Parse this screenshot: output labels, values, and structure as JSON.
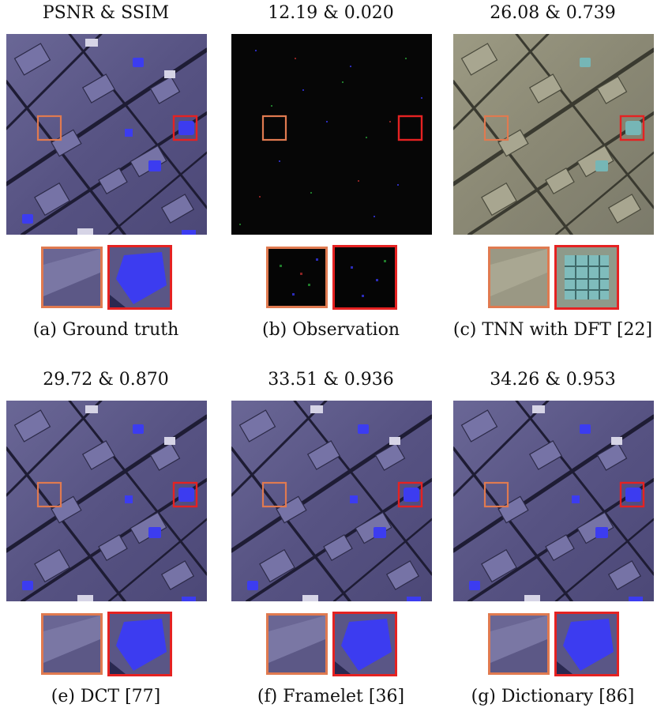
{
  "panels": [
    {
      "metric": "PSNR & SSIM",
      "caption": "(a) Ground truth",
      "style": "gt"
    },
    {
      "metric": "12.19 & 0.020",
      "caption": "(b) Observation",
      "style": "dark"
    },
    {
      "metric": "26.08 & 0.739",
      "caption": "(c) TNN with DFT [22]",
      "style": "tan"
    },
    {
      "metric": "29.72 & 0.870",
      "caption": "(e) DCT [77]",
      "style": "gt"
    },
    {
      "metric": "33.51 & 0.936",
      "caption": "(f) Framelet [36]",
      "style": "gt"
    },
    {
      "metric": "34.26 & 0.953",
      "caption": "(g) Dictionary [86]",
      "style": "gt"
    }
  ],
  "colors": {
    "orange_box": "#e07a50",
    "red_box": "#e52222",
    "city_base": "#5e5a86",
    "observation_base": "#060606",
    "tnn_base": "#8f8f78",
    "roof_blue": "#3c3cf0"
  }
}
